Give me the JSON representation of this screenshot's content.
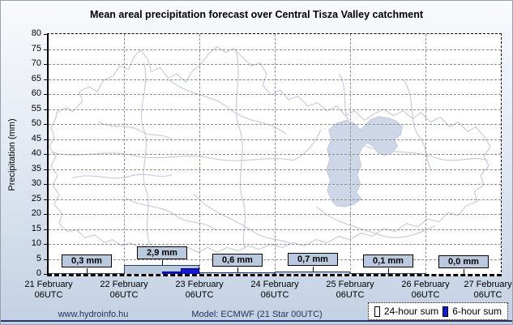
{
  "title": "Mean areal precipitation forecast over Central Tisza Valley catchment",
  "y_axis": {
    "label": "Precipitation (mm)"
  },
  "chart_data": {
    "type": "bar",
    "title": "Mean areal precipitation forecast over Central Tisza Valley catchment",
    "xlabel": "",
    "ylabel": "Precipitation (mm)",
    "ylim": [
      0,
      80
    ],
    "yticks": [
      0,
      5,
      10,
      15,
      20,
      25,
      30,
      35,
      40,
      45,
      50,
      55,
      60,
      65,
      70,
      75,
      80
    ],
    "grid": true,
    "legend_position": "bottom-right",
    "x_boundary_labels": [
      {
        "date": "21 February",
        "time": "06UTC"
      },
      {
        "date": "22 February",
        "time": "06UTC"
      },
      {
        "date": "23 February",
        "time": "06UTC"
      },
      {
        "date": "24 February",
        "time": "06UTC"
      },
      {
        "date": "25 February",
        "time": "06UTC"
      },
      {
        "date": "26 February",
        "time": "06UTC"
      },
      {
        "date": "27 February",
        "time": "06UTC"
      }
    ],
    "categories": [
      "21-22 February",
      "22-23 February",
      "23-24 February",
      "24-25 February",
      "25-26 February",
      "26-27 February"
    ],
    "series": [
      {
        "name": "24-hour sum",
        "unit": "mm",
        "color": "#b9c9de",
        "values": [
          0.3,
          2.9,
          0.6,
          0.7,
          0.1,
          0.0
        ]
      },
      {
        "name": "6-hour sum",
        "unit": "mm",
        "color": "#1616d6",
        "bars": [
          {
            "day_index": 1,
            "period_index": 2,
            "value": 0.9
          },
          {
            "day_index": 1,
            "period_index": 3,
            "value": 2.0
          }
        ]
      }
    ],
    "value_labels": [
      "0,3 mm",
      "2,9 mm",
      "0,6 mm",
      "0,7 mm",
      "0,1 mm",
      "0,0 mm"
    ]
  },
  "footer": {
    "website": "www.hydroinfo.hu",
    "model": "Model: ECMWF (21  Star 00UTC)",
    "legend": [
      {
        "label": "24-hour sum",
        "swatch_color": "#ffffff"
      },
      {
        "label": "6-hour sum",
        "swatch_color": "#1616d6"
      }
    ]
  },
  "colors": {
    "background_top": "#f8fafc",
    "background_bottom": "#c2d1e3",
    "plot_background": "#ffffff",
    "grid": "#8f8f8f",
    "map_outline": "#c7cdda",
    "map_highlight_fill": "#cdd7e7",
    "bar_24h_fill": "#b9c9de",
    "bar_24h_border": "#2b3a6b",
    "bar_6h_fill": "#1616d6",
    "label_box_fill": "#b9c9de",
    "footer_text": "#27335e",
    "bottom_rule": "#2a336e"
  }
}
